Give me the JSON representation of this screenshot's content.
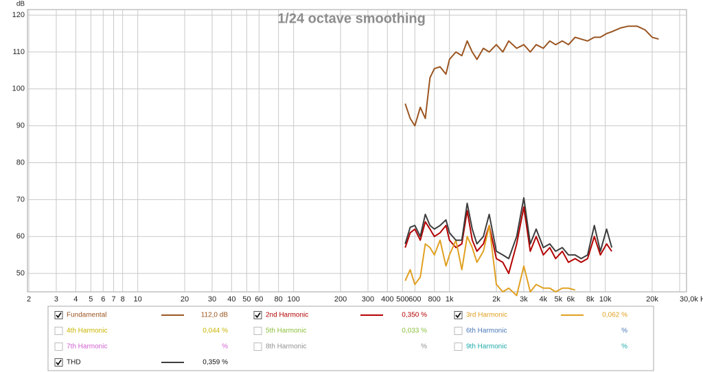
{
  "chart_data": {
    "type": "line",
    "title": "1/24 octave smoothing",
    "y_label": "dB",
    "log_x": true,
    "grid": true,
    "xlim": [
      2,
      30000
    ],
    "ylim": [
      45,
      121.5
    ],
    "yticks": [
      50,
      60,
      70,
      80,
      90,
      100,
      110,
      120
    ],
    "xticks": [
      2,
      3,
      4,
      5,
      6,
      7,
      8,
      10,
      20,
      30,
      40,
      50,
      60,
      80,
      100,
      200,
      300,
      400,
      500,
      600,
      800,
      {
        "value": 1000,
        "label": "1k"
      },
      {
        "value": 2000,
        "label": "2k"
      },
      {
        "value": 3000,
        "label": "3k"
      },
      {
        "value": 4000,
        "label": "4k"
      },
      {
        "value": 5000,
        "label": "5k"
      },
      {
        "value": 6000,
        "label": "6k"
      },
      {
        "value": 8000,
        "label": "8k"
      },
      {
        "value": 10000,
        "label": "10k"
      },
      {
        "value": 20000,
        "label": "20k"
      },
      {
        "value": 30000,
        "label": "30,0k Hz"
      }
    ],
    "x": [
      520,
      560,
      600,
      650,
      700,
      750,
      800,
      870,
      950,
      1000,
      1100,
      1200,
      1300,
      1400,
      1500,
      1650,
      1800,
      2000,
      2200,
      2400,
      2700,
      3000,
      3300,
      3600,
      4000,
      4400,
      4800,
      5300,
      5800,
      6400,
      7000,
      7700,
      8500,
      9300,
      10200,
      11000,
      12500,
      14000,
      16000,
      18000,
      20000,
      22000
    ],
    "series": [
      {
        "name": "Fundamental",
        "color": "#9a5420",
        "checked": true,
        "readout": "112,0 dB",
        "values": [
          96,
          92,
          90,
          95,
          92,
          103,
          105.5,
          106,
          104,
          108,
          110,
          109,
          113,
          110,
          108,
          111,
          110,
          112,
          110,
          113,
          111,
          112,
          110,
          112,
          111,
          113,
          112,
          113,
          112,
          114,
          113.5,
          113,
          114,
          114,
          115,
          115.5,
          116.5,
          117,
          117,
          116,
          114,
          113.5
        ]
      },
      {
        "name": "2nd Harmonic",
        "color": "#b40000",
        "checked": true,
        "readout": "0,350 %",
        "values": [
          57,
          61,
          62,
          59,
          64,
          62,
          60,
          61,
          63,
          59,
          57,
          58,
          67,
          59,
          56,
          58,
          63,
          54,
          53,
          50,
          58,
          68,
          56,
          60,
          55,
          57,
          54,
          56,
          53,
          54,
          53,
          54,
          60,
          55,
          58,
          56,
          null,
          null,
          null,
          null,
          null,
          null
        ]
      },
      {
        "name": "3rd Harmonic",
        "color": "#e0a020",
        "checked": true,
        "readout": "0,062 %",
        "values": [
          48,
          51,
          47,
          49,
          58,
          57,
          55,
          59,
          52,
          55,
          59,
          51,
          60,
          57,
          53,
          56,
          63,
          47,
          45,
          46,
          44,
          52,
          45,
          47,
          46,
          46,
          45,
          46,
          46,
          45.5,
          null,
          null,
          null,
          null,
          null,
          null,
          null,
          null,
          null,
          null,
          null,
          null
        ]
      },
      {
        "name": "4th Harmonic",
        "color": "#c8b400",
        "checked": false,
        "readout": "0,044 %"
      },
      {
        "name": "5th Harmonic",
        "color": "#8cbf3c",
        "checked": false,
        "readout": "0,033 %"
      },
      {
        "name": "6th Harmonic",
        "color": "#4a78b8",
        "checked": false,
        "readout": "%"
      },
      {
        "name": "7th Harmonic",
        "color": "#d060d0",
        "checked": false,
        "readout": "%"
      },
      {
        "name": "8th Harmonic",
        "color": "#909090",
        "checked": false,
        "readout": "%"
      },
      {
        "name": "9th Harmonic",
        "color": "#20a8a8",
        "checked": false,
        "readout": "%"
      },
      {
        "name": "THD",
        "color": "#3c3c3c",
        "checked": true,
        "readout": "0,359 %",
        "values": [
          58,
          62.5,
          63,
          60,
          66,
          63,
          62,
          63,
          64.5,
          61,
          59,
          59,
          69,
          62,
          58,
          60,
          66,
          56,
          55,
          54,
          60,
          70.5,
          58,
          62,
          57,
          58,
          56,
          57,
          55,
          55,
          54,
          55,
          63,
          56,
          62,
          57,
          null,
          null,
          null,
          null,
          null,
          null
        ]
      }
    ]
  }
}
